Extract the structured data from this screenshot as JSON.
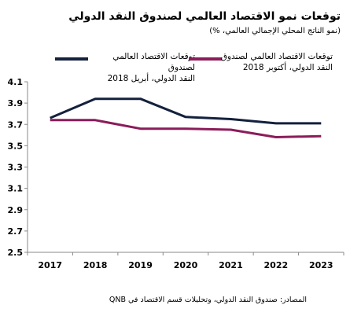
{
  "title": "توقعات نمو الاقتصاد العالمي لصندوق النقد الدولي",
  "subtitle": "(نمو الناتج المحلي الإجمالي العالمي، %)",
  "source": "المصادر: صندوق النقد الدولي، وتحليلات قسم الاقتصاد في QNB",
  "colors": {
    "april": "#14213d",
    "october": "#8b1c5a",
    "axis": "#888888"
  },
  "legend": {
    "april_line1": "توقعات الاقتصاد العالمي لصندوق",
    "april_line2": "النقد الدولي، أبريل 2018",
    "october_line1": "توقعات الاقتصاد العالمي لصندوق",
    "october_line2": "النقد الدولي، أكتوبر 2018"
  },
  "chart_data": {
    "type": "line",
    "title": "توقعات نمو الاقتصاد العالمي لصندوق النقد الدولي",
    "subtitle": "(نمو الناتج المحلي الإجمالي العالمي، %)",
    "categories": [
      "2017",
      "2018",
      "2019",
      "2020",
      "2021",
      "2022",
      "2023"
    ],
    "series": [
      {
        "name": "توقعات الاقتصاد العالمي لصندوق النقد الدولي، أبريل 2018",
        "values": [
          3.76,
          3.94,
          3.94,
          3.77,
          3.75,
          3.71,
          3.71
        ]
      },
      {
        "name": "توقعات الاقتصاد العالمي لصندوق النقد الدولي، أكتوبر 2018",
        "values": [
          3.74,
          3.74,
          3.66,
          3.66,
          3.65,
          3.58,
          3.59
        ]
      }
    ],
    "yticks": [
      "4.1",
      "3.9",
      "3.7",
      "3.5",
      "3.3",
      "3.1",
      "2.9",
      "2.7",
      "2.5"
    ],
    "ylim": [
      2.5,
      4.1
    ],
    "grid": false,
    "legend_position": "top"
  }
}
